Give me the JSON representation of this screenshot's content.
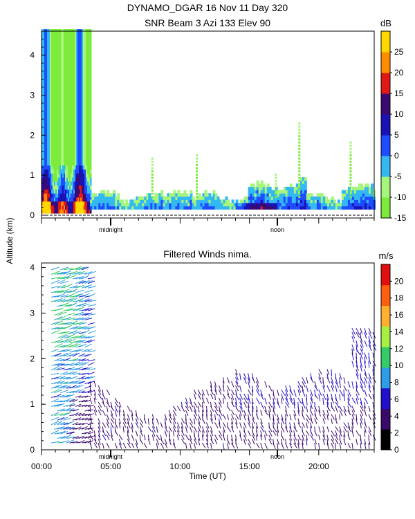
{
  "header": {
    "title_line1": "DYNAMO_DGAR  16 Nov 11 Day 320",
    "title_line2": "SNR Beam 3 Azi 133 Elev 90"
  },
  "y_axis_label": "Altitude (km)",
  "x_axis_label": "Time (UT)",
  "markers": {
    "midnight": "midnight",
    "noon": "noon"
  },
  "colors": {
    "snr_scale": [
      "#7CEB3B",
      "#A6F57C",
      "#33B8F2",
      "#1E4CFF",
      "#1A12B4",
      "#3C0A6E",
      "#E01818",
      "#FF8C00",
      "#FFD800"
    ],
    "wind_scale": [
      "#000000",
      "#3A0A6B",
      "#2211CC",
      "#2E9CE6",
      "#33CC66",
      "#A6F046",
      "#FFB030",
      "#FF6010",
      "#E01010"
    ]
  },
  "chart_data": [
    {
      "type": "heatmap",
      "title": "SNR Beam 3 Azi 133 Elev 90",
      "ylabel": "Altitude (km)",
      "xlim_hours_ut": [
        0,
        24
      ],
      "ylim": [
        0,
        4.6
      ],
      "y_ticks": [
        "0",
        "1",
        "2",
        "3",
        "4"
      ],
      "colorbar": {
        "unit": "dB",
        "range": [
          -15,
          30
        ],
        "ticks": [
          "-15",
          "-10",
          "-5",
          "0",
          "5",
          "10",
          "15",
          "20",
          "25"
        ]
      },
      "features": [
        {
          "t_start": 0.0,
          "t_end": 3.5,
          "alt_top_km": 4.6,
          "snr_db": "-10 to 25 (strong echo column)"
        },
        {
          "t_start": 3.5,
          "t_end": 24.0,
          "alt_top_km": 0.5,
          "snr_db": "-15 to 5 (boundary layer)"
        },
        {
          "t_center": 16.9,
          "alt_top_km": 1.0,
          "snr_db": "-10"
        },
        {
          "t_center": 18.6,
          "alt_top_km": 2.3,
          "snr_db": "-15"
        },
        {
          "t_center": 22.3,
          "alt_top_km": 1.8,
          "snr_db": "-15"
        }
      ]
    },
    {
      "type": "scatter",
      "title": "Filtered Winds nima.",
      "xlabel": "Time (UT)",
      "ylabel": "Altitude (km)",
      "xlim_hours_ut": [
        0,
        24
      ],
      "ylim": [
        0,
        4.1
      ],
      "x_ticks": [
        {
          "value": 0,
          "label": "00:00"
        },
        {
          "value": 5,
          "label": "05:00"
        },
        {
          "value": 10,
          "label": "10:00"
        },
        {
          "value": 15,
          "label": "15:00"
        },
        {
          "value": 20,
          "label": "20:00"
        }
      ],
      "y_ticks": [
        "0",
        "1",
        "2",
        "3",
        "4"
      ],
      "colorbar": {
        "unit": "m/s",
        "range": [
          0,
          22
        ],
        "ticks": [
          "0",
          "2",
          "4",
          "6",
          "8",
          "10",
          "12",
          "14",
          "16",
          "18",
          "20"
        ]
      },
      "wind_regions": [
        {
          "t_start": 0.5,
          "t_end": 3.5,
          "alt_bottom_km": 0.1,
          "alt_top_km": 4.1,
          "speed_ms": "4 to 12"
        },
        {
          "t_start": 3.5,
          "t_end": 12.0,
          "alt_bottom_km": 0.1,
          "alt_top_km": 1.6,
          "speed_ms": "2 to 5"
        },
        {
          "t_start": 12.0,
          "t_end": 24.0,
          "alt_bottom_km": 0.1,
          "alt_top_km": 2.0,
          "speed_ms": "2 to 6"
        },
        {
          "t_start": 22.2,
          "t_end": 24.0,
          "alt_bottom_km": 0.1,
          "alt_top_km": 2.8,
          "speed_ms": "3 to 12"
        }
      ]
    }
  ]
}
